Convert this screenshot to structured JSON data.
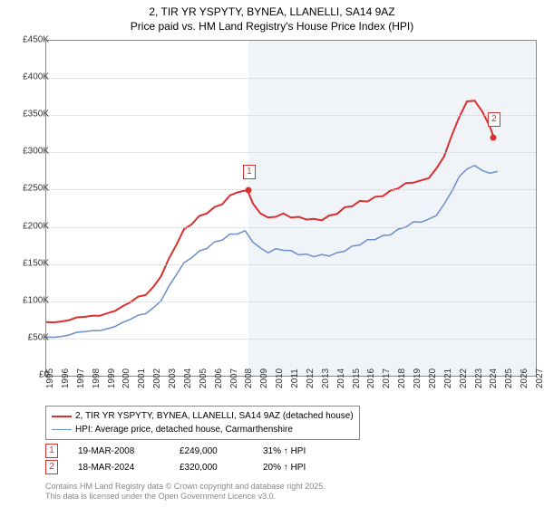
{
  "title_line1": "2, TIR YR YSPYTY, BYNEA, LLANELLI, SA14 9AZ",
  "title_line2": "Price paid vs. HM Land Registry's House Price Index (HPI)",
  "chart": {
    "type": "line",
    "xlim": [
      1995,
      2027
    ],
    "ylim": [
      0,
      450000
    ],
    "ytick_step": 50000,
    "ytick_labels": [
      "£0",
      "£50K",
      "£100K",
      "£150K",
      "£200K",
      "£250K",
      "£300K",
      "£350K",
      "£400K",
      "£450K"
    ],
    "xtick_step": 1,
    "xtick_labels": [
      "1995",
      "1996",
      "1997",
      "1998",
      "1999",
      "2000",
      "2001",
      "2002",
      "2003",
      "2004",
      "2005",
      "2006",
      "2007",
      "2008",
      "2009",
      "2010",
      "2011",
      "2012",
      "2013",
      "2014",
      "2015",
      "2016",
      "2017",
      "2018",
      "2019",
      "2020",
      "2021",
      "2022",
      "2023",
      "2024",
      "2025",
      "2026",
      "2027"
    ],
    "future_band_start": 2008.21,
    "background_color": "#ffffff",
    "future_band_color": "#f0f4f9",
    "grid_color": "#cccccc",
    "series": [
      {
        "name": "price_paid",
        "label": "2, TIR YR YSPYTY, BYNEA, LLANELLI, SA14 9AZ (detached house)",
        "color": "#d93030",
        "width": 2,
        "x": [
          1995,
          1995.5,
          1996,
          1996.5,
          1997,
          1997.5,
          1998,
          1998.5,
          1999,
          1999.5,
          2000,
          2000.5,
          2001,
          2001.5,
          2002,
          2002.5,
          2003,
          2003.5,
          2004,
          2004.5,
          2005,
          2005.5,
          2006,
          2006.5,
          2007,
          2007.5,
          2008,
          2008.21,
          2008.5,
          2009,
          2009.5,
          2010,
          2010.5,
          2011,
          2011.5,
          2012,
          2012.5,
          2013,
          2013.5,
          2014,
          2014.5,
          2015,
          2015.5,
          2016,
          2016.5,
          2017,
          2017.5,
          2018,
          2018.5,
          2019,
          2019.5,
          2020,
          2020.5,
          2021,
          2021.5,
          2022,
          2022.5,
          2023,
          2023.5,
          2024,
          2024.21
        ],
        "y": [
          72000,
          73000,
          74000,
          75000,
          77000,
          78000,
          80000,
          82000,
          85000,
          88000,
          92000,
          98000,
          105000,
          110000,
          120000,
          135000,
          155000,
          175000,
          195000,
          205000,
          215000,
          220000,
          225000,
          230000,
          240000,
          248000,
          249000,
          249000,
          230000,
          218000,
          210000,
          215000,
          218000,
          215000,
          212000,
          210000,
          208000,
          210000,
          215000,
          220000,
          225000,
          228000,
          232000,
          235000,
          240000,
          244000,
          248000,
          252000,
          256000,
          260000,
          262000,
          268000,
          278000,
          295000,
          320000,
          348000,
          368000,
          372000,
          355000,
          335000,
          320000
        ]
      },
      {
        "name": "hpi",
        "label": "HPI: Average price, detached house, Carmarthenshire",
        "color": "#6a8fc8",
        "width": 1.5,
        "x": [
          1995,
          1995.5,
          1996,
          1996.5,
          1997,
          1997.5,
          1998,
          1998.5,
          1999,
          1999.5,
          2000,
          2000.5,
          2001,
          2001.5,
          2002,
          2002.5,
          2003,
          2003.5,
          2004,
          2004.5,
          2005,
          2005.5,
          2006,
          2006.5,
          2007,
          2007.5,
          2008,
          2008.5,
          2009,
          2009.5,
          2010,
          2010.5,
          2011,
          2011.5,
          2012,
          2012.5,
          2013,
          2013.5,
          2014,
          2014.5,
          2015,
          2015.5,
          2016,
          2016.5,
          2017,
          2017.5,
          2018,
          2018.5,
          2019,
          2019.5,
          2020,
          2020.5,
          2021,
          2021.5,
          2022,
          2022.5,
          2023,
          2023.5,
          2024,
          2024.5
        ],
        "y": [
          52000,
          53000,
          54000,
          55000,
          57000,
          58000,
          60000,
          62000,
          64000,
          67000,
          70000,
          75000,
          80000,
          85000,
          92000,
          102000,
          118000,
          135000,
          150000,
          160000,
          168000,
          173000,
          178000,
          182000,
          188000,
          192000,
          195000,
          182000,
          170000,
          165000,
          168000,
          170000,
          168000,
          165000,
          162000,
          160000,
          160000,
          162000,
          165000,
          170000,
          173000,
          176000,
          180000,
          184000,
          188000,
          192000,
          196000,
          200000,
          204000,
          207000,
          210000,
          218000,
          230000,
          248000,
          265000,
          278000,
          282000,
          278000,
          272000,
          275000
        ]
      }
    ],
    "markers": [
      {
        "n": "1",
        "x": 2008.21,
        "y": 249000
      },
      {
        "n": "2",
        "x": 2024.21,
        "y": 320000
      }
    ]
  },
  "legend": {
    "items": [
      {
        "color": "#d93030",
        "width": 2,
        "label": "2, TIR YR YSPYTY, BYNEA, LLANELLI, SA14 9AZ (detached house)"
      },
      {
        "color": "#6a8fc8",
        "width": 1.5,
        "label": "HPI: Average price, detached house, Carmarthenshire"
      }
    ]
  },
  "sales": [
    {
      "n": "1",
      "date": "19-MAR-2008",
      "price": "£249,000",
      "delta": "31% ↑ HPI"
    },
    {
      "n": "2",
      "date": "18-MAR-2024",
      "price": "£320,000",
      "delta": "20% ↑ HPI"
    }
  ],
  "footnote_line1": "Contains HM Land Registry data © Crown copyright and database right 2025.",
  "footnote_line2": "This data is licensed under the Open Government Licence v3.0."
}
